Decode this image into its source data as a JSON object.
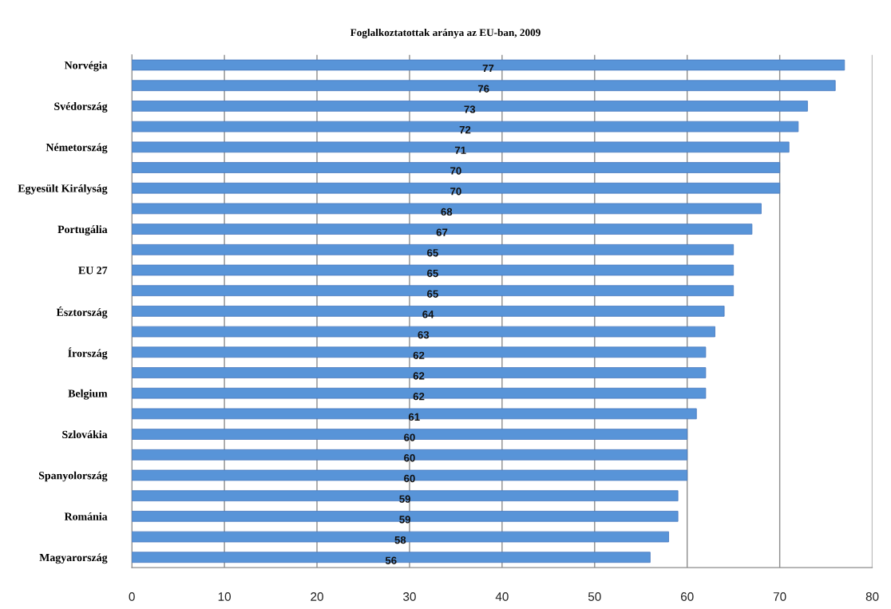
{
  "chart_data": {
    "type": "bar",
    "orientation": "horizontal",
    "title": "Foglalkoztatottak aránya az EU-ban, 2009",
    "categories": [
      "Norvégia",
      null,
      "Svédország",
      null,
      "Németország",
      null,
      "Egyesült Királyság",
      null,
      "Portugália",
      null,
      "EU 27",
      null,
      "Észtország",
      null,
      "Írország",
      null,
      "Belgium",
      null,
      "Szlovákia",
      null,
      "Spanyolország",
      null,
      "Románia",
      null,
      "Magyarország"
    ],
    "values": [
      77,
      76,
      73,
      72,
      71,
      70,
      70,
      68,
      67,
      65,
      65,
      65,
      64,
      63,
      62,
      62,
      62,
      61,
      60,
      60,
      60,
      59,
      59,
      58,
      56
    ],
    "color": "#5894d8",
    "xlim": [
      0,
      80
    ],
    "xticks": [
      0,
      10,
      20,
      30,
      40,
      50,
      60,
      70,
      80
    ],
    "grid": "x",
    "data_labels": true
  }
}
